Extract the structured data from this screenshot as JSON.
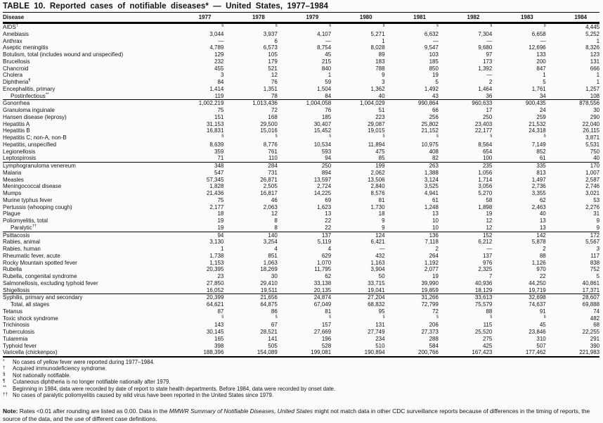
{
  "title": "TABLE 10. Reported cases of notifiable diseases* — United States, 1977–1984",
  "table": {
    "columns": [
      "Disease",
      "1977",
      "1978",
      "1979",
      "1980",
      "1981",
      "1982",
      "1983",
      "1984"
    ],
    "not_notifiable_symbol": "§",
    "no_cases_symbol": "—",
    "groups": [
      {
        "rows": [
          {
            "name": "AIDS",
            "sup": "†",
            "values": [
              "§",
              "§",
              "§",
              "§",
              "§",
              "§",
              "§",
              "4,445"
            ]
          },
          {
            "name": "Amebiasis",
            "values": [
              "3,044",
              "3,937",
              "4,107",
              "5,271",
              "6,632",
              "7,304",
              "6,658",
              "5,252"
            ]
          },
          {
            "name": "Anthrax",
            "values": [
              "—",
              "6",
              "—",
              "1",
              "—",
              "—",
              "—",
              "1"
            ]
          },
          {
            "name": "Aseptic meningitis",
            "values": [
              "4,789",
              "6,573",
              "8,754",
              "8,028",
              "9,547",
              "9,680",
              "12,696",
              "8,326"
            ]
          },
          {
            "name": "Botulism, total (includes wound and unspecified)",
            "values": [
              "129",
              "105",
              "45",
              "89",
              "103",
              "97",
              "133",
              "123"
            ]
          },
          {
            "name": "Brucellosis",
            "values": [
              "232",
              "179",
              "215",
              "183",
              "185",
              "173",
              "200",
              "131"
            ]
          },
          {
            "name": "Chancroid",
            "values": [
              "455",
              "521",
              "840",
              "788",
              "850",
              "1,392",
              "847",
              "666"
            ]
          },
          {
            "name": "Cholera",
            "values": [
              "3",
              "12",
              "1",
              "9",
              "19",
              "—",
              "1",
              "1"
            ]
          },
          {
            "name": "Diphtheria",
            "sup": "¶",
            "values": [
              "84",
              "76",
              "59",
              "3",
              "5",
              "2",
              "5",
              "1"
            ]
          },
          {
            "name": "Encephalitis, primary",
            "values": [
              "1,414",
              "1,351",
              "1,504",
              "1,362",
              "1,492",
              "1,464",
              "1,761",
              "1,257"
            ]
          },
          {
            "name": "Postinfectious",
            "sup": "**",
            "indent": true,
            "values": [
              "119",
              "78",
              "84",
              "40",
              "43",
              "36",
              "34",
              "108"
            ]
          }
        ]
      },
      {
        "rows": [
          {
            "name": "Gonorrhea",
            "values": [
              "1,002,219",
              "1,013,436",
              "1,004,058",
              "1,004,029",
              "990,864",
              "960,633",
              "900,435",
              "878,556"
            ]
          },
          {
            "name": "Granuloma inguinale",
            "values": [
              "75",
              "72",
              "76",
              "51",
              "66",
              "17",
              "24",
              "30"
            ]
          },
          {
            "name": "Hansen disease (leprosy)",
            "values": [
              "151",
              "168",
              "185",
              "223",
              "256",
              "250",
              "259",
              "290"
            ]
          },
          {
            "name": "Hepatitis A",
            "values": [
              "31,153",
              "29,500",
              "30,407",
              "29,087",
              "25,802",
              "23,403",
              "21,532",
              "22,040"
            ]
          },
          {
            "name": "Hepatitis B",
            "values": [
              "16,831",
              "15,016",
              "15,452",
              "19,015",
              "21,152",
              "22,177",
              "24,318",
              "26,115"
            ]
          },
          {
            "name": "Hepatitis C; non-A, non-B",
            "values": [
              "§",
              "§",
              "§",
              "§",
              "§",
              "§",
              "§",
              "3,871"
            ]
          },
          {
            "name": "Hepatitis, unspecified",
            "values": [
              "8,639",
              "8,776",
              "10,534",
              "11,894",
              "10,975",
              "8,564",
              "7,149",
              "5,531"
            ]
          },
          {
            "name": "Legionellosis",
            "values": [
              "359",
              "761",
              "593",
              "475",
              "408",
              "654",
              "852",
              "750"
            ]
          },
          {
            "name": "Leptospirosis",
            "values": [
              "71",
              "110",
              "94",
              "85",
              "82",
              "100",
              "61",
              "40"
            ]
          }
        ]
      },
      {
        "rows": [
          {
            "name": "Lymphogranuloma venereum",
            "values": [
              "348",
              "284",
              "250",
              "199",
              "263",
              "235",
              "335",
              "170"
            ]
          },
          {
            "name": "Malaria",
            "values": [
              "547",
              "731",
              "894",
              "2,062",
              "1,388",
              "1,056",
              "813",
              "1,007"
            ]
          },
          {
            "name": "Measles",
            "values": [
              "57,345",
              "26,871",
              "13,597",
              "13,506",
              "3,124",
              "1,714",
              "1,497",
              "2,587"
            ]
          },
          {
            "name": "Meningococcal disease",
            "values": [
              "1,828",
              "2,505",
              "2,724",
              "2,840",
              "3,525",
              "3,056",
              "2,736",
              "2,746"
            ]
          },
          {
            "name": "Mumps",
            "values": [
              "21,436",
              "16,817",
              "14,225",
              "8,576",
              "4,941",
              "5,270",
              "3,355",
              "3,021"
            ]
          },
          {
            "name": "Murine typhus fever",
            "values": [
              "75",
              "46",
              "69",
              "81",
              "61",
              "58",
              "62",
              "53"
            ]
          },
          {
            "name": "Pertussis (whooping cough)",
            "values": [
              "2,177",
              "2,063",
              "1,623",
              "1,730",
              "1,248",
              "1,898",
              "2,463",
              "2,276"
            ]
          },
          {
            "name": "Plague",
            "values": [
              "18",
              "12",
              "13",
              "18",
              "13",
              "19",
              "40",
              "31"
            ]
          },
          {
            "name": "Poliomyelitis, total",
            "values": [
              "19",
              "8",
              "22",
              "9",
              "10",
              "12",
              "13",
              "9"
            ]
          },
          {
            "name": "Paralytic",
            "sup": "††",
            "indent": true,
            "values": [
              "19",
              "8",
              "22",
              "9",
              "10",
              "12",
              "13",
              "9"
            ]
          }
        ]
      },
      {
        "rows": [
          {
            "name": "Psittacosis",
            "values": [
              "94",
              "140",
              "137",
              "124",
              "136",
              "152",
              "142",
              "172"
            ]
          },
          {
            "name": "Rabies, animal",
            "values": [
              "3,130",
              "3,254",
              "5,119",
              "6,421",
              "7,118",
              "6,212",
              "5,878",
              "5,567"
            ]
          },
          {
            "name": "Rabies, human",
            "values": [
              "1",
              "4",
              "4",
              "—",
              "2",
              "—",
              "2",
              "3"
            ]
          },
          {
            "name": "Rheumatic fever, acute",
            "values": [
              "1,738",
              "851",
              "629",
              "432",
              "264",
              "137",
              "88",
              "117"
            ]
          },
          {
            "name": "Rocky Mountain spotted fever",
            "values": [
              "1,153",
              "1,063",
              "1,070",
              "1,163",
              "1,192",
              "976",
              "1,126",
              "838"
            ]
          },
          {
            "name": "Rubella",
            "values": [
              "20,395",
              "18,269",
              "11,795",
              "3,904",
              "2,077",
              "2,325",
              "970",
              "752"
            ]
          },
          {
            "name": "Rubella, congenital syndrome",
            "values": [
              "23",
              "30",
              "62",
              "50",
              "19",
              "7",
              "22",
              "5"
            ]
          },
          {
            "name": "Salmonellosis, excluding typhoid fever",
            "values": [
              "27,850",
              "29,410",
              "33,138",
              "33,715",
              "39,990",
              "40,936",
              "44,250",
              "40,861"
            ]
          },
          {
            "name": "Shigellosis",
            "values": [
              "16,052",
              "19,511",
              "20,135",
              "19,041",
              "19,859",
              "18,129",
              "19,719",
              "17,371"
            ]
          }
        ]
      },
      {
        "rows": [
          {
            "name": "Syphilis, primary and secondary",
            "values": [
              "20,399",
              "21,656",
              "24,874",
              "27,204",
              "31,266",
              "33,613",
              "32,698",
              "28,607"
            ]
          },
          {
            "name": "Total, all stages",
            "indent": true,
            "values": [
              "64,621",
              "64,875",
              "67,049",
              "68,832",
              "72,799",
              "75,579",
              "74,637",
              "69,888"
            ]
          },
          {
            "name": "Tetanus",
            "values": [
              "87",
              "86",
              "81",
              "95",
              "72",
              "88",
              "91",
              "74"
            ]
          },
          {
            "name": "Toxic shock syndrome",
            "values": [
              "§",
              "§",
              "§",
              "§",
              "§",
              "§",
              "§",
              "482"
            ]
          },
          {
            "name": "Trichinosis",
            "values": [
              "143",
              "67",
              "157",
              "131",
              "206",
              "115",
              "45",
              "68"
            ]
          },
          {
            "name": "Tuberculosis",
            "values": [
              "30,145",
              "28,521",
              "27,669",
              "27,749",
              "27,373",
              "25,520",
              "23,846",
              "22,255"
            ]
          },
          {
            "name": "Tularemia",
            "values": [
              "165",
              "141",
              "196",
              "234",
              "288",
              "275",
              "310",
              "291"
            ]
          },
          {
            "name": "Typhoid fever",
            "values": [
              "398",
              "505",
              "528",
              "510",
              "584",
              "425",
              "507",
              "390"
            ]
          },
          {
            "name": "Varicella (chickenpox)",
            "values": [
              "188,396",
              "154,089",
              "199,081",
              "190,894",
              "200,766",
              "167,423",
              "177,462",
              "221,983"
            ]
          }
        ]
      }
    ]
  },
  "footnotes": [
    {
      "symbol": "*",
      "text": "No cases of yellow fever were reported during 1977–1984."
    },
    {
      "symbol": "†",
      "text": "Acquired immunodeficiency syndrome."
    },
    {
      "symbol": "§",
      "text": "Not nationally notifiable."
    },
    {
      "symbol": "¶",
      "text": "Cutaneous diphtheria is no longer notifiable nationally after 1979."
    },
    {
      "symbol": "**",
      "text": "Beginning in 1984, data were recorded by date of report to state health departments.  Before 1984, data were recorded by onset date."
    },
    {
      "symbol": "††",
      "text": "No cases of paralytic poliomyelitis caused by wild virus have been reported in the United States since 1979."
    }
  ],
  "note": {
    "prefix": "Note:",
    "text1": " Rates <0.01 after rounding are listed as 0.00. Data in the ",
    "italic": "MMWR Summary of Notifiable Diseases, United States",
    "text2": " might not match data in other CDC surveillance reports because of differences in the timing of reports, the source of the data, and the use of different case definitions."
  }
}
